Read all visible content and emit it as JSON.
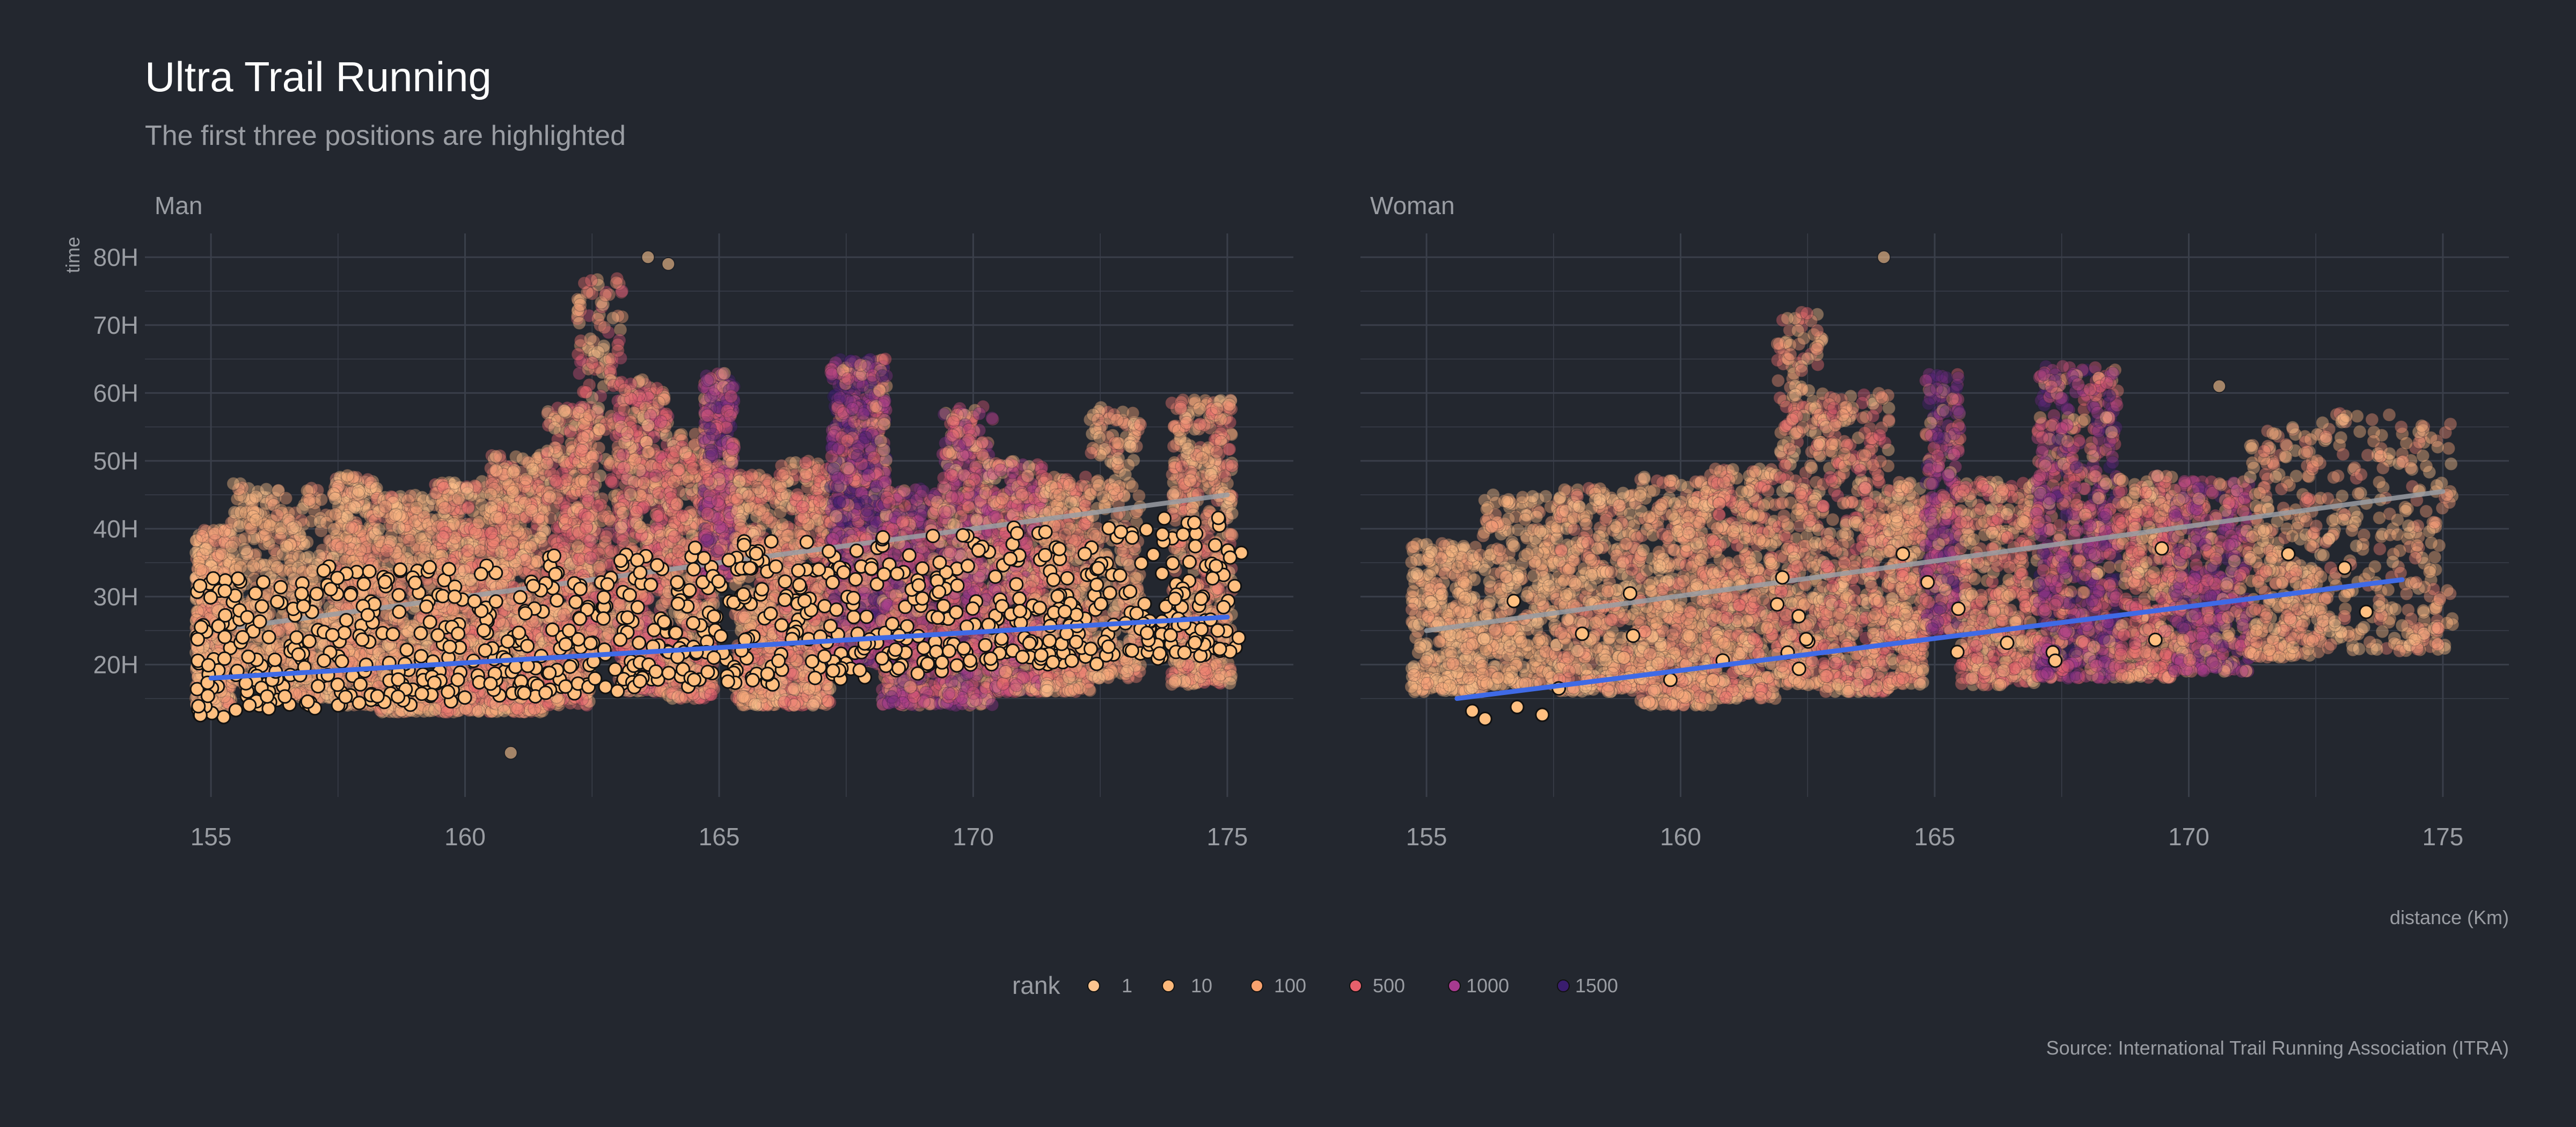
{
  "title": "Ultra Trail Running",
  "subtitle": "The first three positions are highlighted",
  "caption": "Source: International Trail Running Association (ITRA)",
  "colors": {
    "background": "#23272f",
    "grid": "#3a3f4a",
    "top_rank_point": "#ffbf80",
    "trend_top": "#3f6ae6",
    "trend_all": "#9a9da3",
    "title": "#ffffff",
    "muted_text": "#9a9da3"
  },
  "chart_data": {
    "type": "scatter",
    "xlabel": "distance (Km)",
    "ylabel": "time",
    "xlim": [
      153.7,
      176.3
    ],
    "ylim": [
      0.5,
      83.5
    ],
    "x_ticks": [
      155,
      160,
      165,
      170,
      175
    ],
    "x_tick_labels": [
      "155",
      "160",
      "165",
      "170",
      "175"
    ],
    "y_ticks": [
      20,
      30,
      40,
      50,
      60,
      70,
      80
    ],
    "y_tick_labels": [
      "20H",
      "30H",
      "40H",
      "50H",
      "60H",
      "70H",
      "80H"
    ],
    "grid": true,
    "legend": {
      "title": "rank",
      "placement": "bottom",
      "entries": [
        {
          "label": "1",
          "color": "#fcc48f"
        },
        {
          "label": "10",
          "color": "#fcb87a"
        },
        {
          "label": "100",
          "color": "#f9a26e"
        },
        {
          "label": "500",
          "color": "#e7606b"
        },
        {
          "label": "1000",
          "color": "#a63a8f"
        },
        {
          "label": "1500",
          "color": "#3a1d6e"
        }
      ]
    },
    "panels": [
      {
        "label": "Man",
        "clusters": [
          {
            "x": [
              154.7,
              155.4
            ],
            "y": [
              14,
              40
            ],
            "rank": [
              1,
              400
            ],
            "n": 700
          },
          {
            "x": [
              155.4,
              156.3
            ],
            "y": [
              17,
              47
            ],
            "rank": [
              1,
              300
            ],
            "n": 250
          },
          {
            "x": [
              156.3,
              157.4
            ],
            "y": [
              15,
              46
            ],
            "rank": [
              1,
              350
            ],
            "n": 350
          },
          {
            "x": [
              157.4,
              158.3
            ],
            "y": [
              14,
              48
            ],
            "rank": [
              1,
              400
            ],
            "n": 500
          },
          {
            "x": [
              158.3,
              159.4
            ],
            "y": [
              13,
              45
            ],
            "rank": [
              1,
              400
            ],
            "n": 450
          },
          {
            "x": [
              159.4,
              160.5
            ],
            "y": [
              13,
              47
            ],
            "rank": [
              1,
              500
            ],
            "n": 650
          },
          {
            "x": [
              160.5,
              161.6
            ],
            "y": [
              13,
              51
            ],
            "rank": [
              1,
              500
            ],
            "n": 700
          },
          {
            "x": [
              161.6,
              162.5
            ],
            "y": [
              14,
              58
            ],
            "rank": [
              1,
              600
            ],
            "n": 550
          },
          {
            "x": [
              162.2,
              163.1
            ],
            "y": [
              22,
              77
            ],
            "rank": [
              1,
              700
            ],
            "n": 300
          },
          {
            "x": [
              163.0,
              164.0
            ],
            "y": [
              16,
              62
            ],
            "rank": [
              1,
              800
            ],
            "n": 700
          },
          {
            "x": [
              164.0,
              164.9
            ],
            "y": [
              15,
              54
            ],
            "rank": [
              1,
              600
            ],
            "n": 450
          },
          {
            "x": [
              164.7,
              165.3
            ],
            "y": [
              33,
              63
            ],
            "rank": [
              100,
              1500
            ],
            "n": 450
          },
          {
            "x": [
              165.3,
              166.2
            ],
            "y": [
              14,
              48
            ],
            "rank": [
              1,
              500
            ],
            "n": 450
          },
          {
            "x": [
              166.2,
              167.2
            ],
            "y": [
              14,
              50
            ],
            "rank": [
              1,
              600
            ],
            "n": 500
          },
          {
            "x": [
              167.2,
              168.3
            ],
            "y": [
              20,
              65
            ],
            "rank": [
              100,
              1700
            ],
            "n": 1100
          },
          {
            "x": [
              168.2,
              169.4
            ],
            "y": [
              14,
              46
            ],
            "rank": [
              100,
              1400
            ],
            "n": 500
          },
          {
            "x": [
              169.4,
              170.4
            ],
            "y": [
              14,
              58
            ],
            "rank": [
              1,
              1200
            ],
            "n": 550
          },
          {
            "x": [
              170.4,
              171.4
            ],
            "y": [
              16,
              50
            ],
            "rank": [
              1,
              1000
            ],
            "n": 550
          },
          {
            "x": [
              171.4,
              172.3
            ],
            "y": [
              16,
              48
            ],
            "rank": [
              1,
              500
            ],
            "n": 350
          },
          {
            "x": [
              172.3,
              173.3
            ],
            "y": [
              18,
              58
            ],
            "rank": [
              1,
              400
            ],
            "n": 300
          },
          {
            "x": [
              173.9,
              175.1
            ],
            "y": [
              17,
              59
            ],
            "rank": [
              1,
              500
            ],
            "n": 550
          }
        ],
        "outliers": [
          {
            "x": 160.9,
            "y": 7
          },
          {
            "x": 163.6,
            "y": 80
          },
          {
            "x": 164.0,
            "y": 79
          }
        ],
        "top_three_n": 900,
        "trend_all": {
          "x": [
            155,
            175
          ],
          "y": [
            25,
            45
          ]
        },
        "trend_top": {
          "x": [
            155,
            175
          ],
          "y": [
            18,
            27
          ]
        }
      },
      {
        "label": "Woman",
        "clusters": [
          {
            "x": [
              154.7,
              156.1
            ],
            "y": [
              16,
              38
            ],
            "rank": [
              1,
              300
            ],
            "n": 350
          },
          {
            "x": [
              156.1,
              157.6
            ],
            "y": [
              17,
              45
            ],
            "rank": [
              1,
              300
            ],
            "n": 350
          },
          {
            "x": [
              157.6,
              159.2
            ],
            "y": [
              16,
              46
            ],
            "rank": [
              1,
              400
            ],
            "n": 450
          },
          {
            "x": [
              159.2,
              160.6
            ],
            "y": [
              14,
              48
            ],
            "rank": [
              1,
              400
            ],
            "n": 500
          },
          {
            "x": [
              160.6,
              161.9
            ],
            "y": [
              15,
              49
            ],
            "rank": [
              1,
              500
            ],
            "n": 450
          },
          {
            "x": [
              161.9,
              162.8
            ],
            "y": [
              17,
              72
            ],
            "rank": [
              1,
              500
            ],
            "n": 350
          },
          {
            "x": [
              162.8,
              164.1
            ],
            "y": [
              16,
              60
            ],
            "rank": [
              1,
              600
            ],
            "n": 450
          },
          {
            "x": [
              164.1,
              164.8
            ],
            "y": [
              17,
              47
            ],
            "rank": [
              1,
              500
            ],
            "n": 250
          },
          {
            "x": [
              164.8,
              165.5
            ],
            "y": [
              25,
              63
            ],
            "rank": [
              100,
              1500
            ],
            "n": 300
          },
          {
            "x": [
              165.5,
              167.0
            ],
            "y": [
              17,
              47
            ],
            "rank": [
              1,
              600
            ],
            "n": 400
          },
          {
            "x": [
              167.0,
              168.6
            ],
            "y": [
              18,
              64
            ],
            "rank": [
              100,
              1500
            ],
            "n": 700
          },
          {
            "x": [
              168.6,
              169.7
            ],
            "y": [
              18,
              48
            ],
            "rank": [
              1,
              700
            ],
            "n": 350
          },
          {
            "x": [
              169.7,
              171.2
            ],
            "y": [
              19,
              47
            ],
            "rank": [
              100,
              1400
            ],
            "n": 450
          },
          {
            "x": [
              171.2,
              172.6
            ],
            "y": [
              21,
              55
            ],
            "rank": [
              1,
              400
            ],
            "n": 300
          },
          {
            "x": [
              172.6,
              175.2
            ],
            "y": [
              22,
              57
            ],
            "rank": [
              1,
              400
            ],
            "n": 300
          }
        ],
        "outliers": [
          {
            "x": 164.0,
            "y": 80
          },
          {
            "x": 170.6,
            "y": 61
          }
        ],
        "top_three_n": 30,
        "trend_all": {
          "x": [
            155,
            175
          ],
          "y": [
            25,
            45.5
          ]
        },
        "trend_top": {
          "x": [
            155.6,
            174.2
          ],
          "y": [
            15,
            32.5
          ]
        }
      }
    ]
  }
}
